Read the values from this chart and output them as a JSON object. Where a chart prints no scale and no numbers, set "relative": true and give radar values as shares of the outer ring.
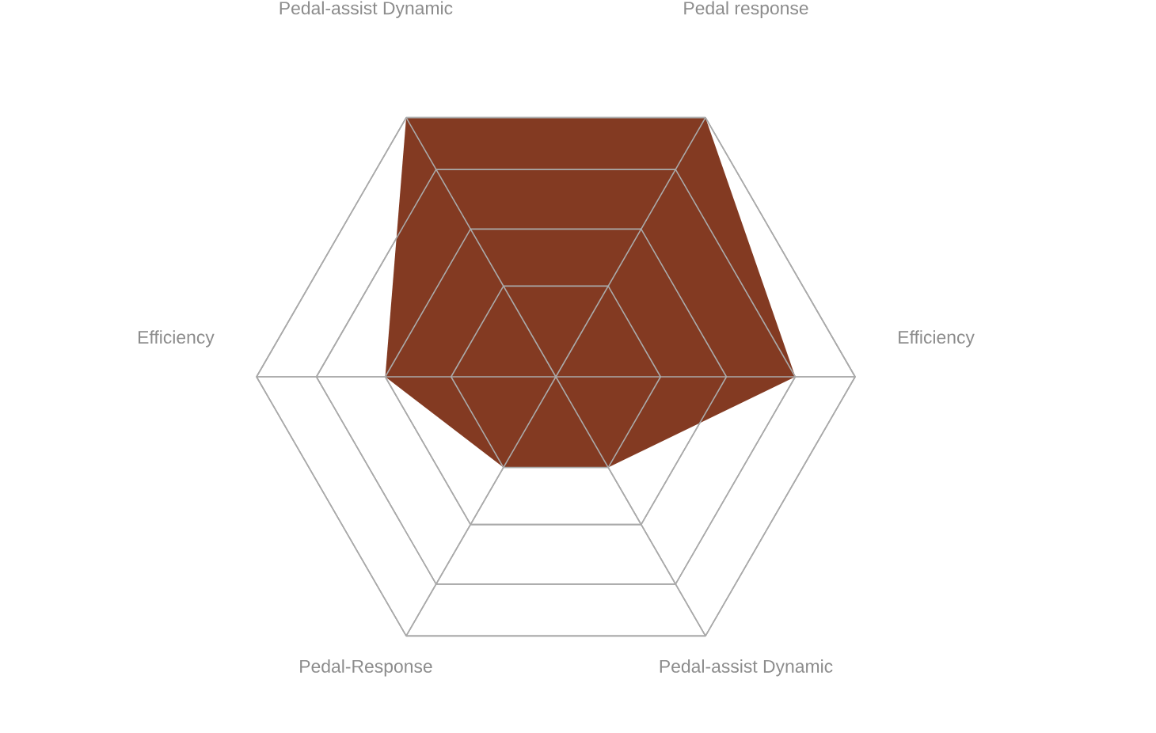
{
  "chart_data": {
    "type": "radar",
    "categories": [
      "Pedal response",
      "Efficiency",
      "Pedal-assist Dynamic",
      "Pedal-Response",
      "Efficiency",
      "Pedal-assist Dynamic"
    ],
    "relative": true,
    "grid": true,
    "series": [
      {
        "color": "#833a22",
        "values": [
          1,
          0.8,
          0.35,
          0.35,
          0.57,
          1
        ]
      }
    ]
  }
}
